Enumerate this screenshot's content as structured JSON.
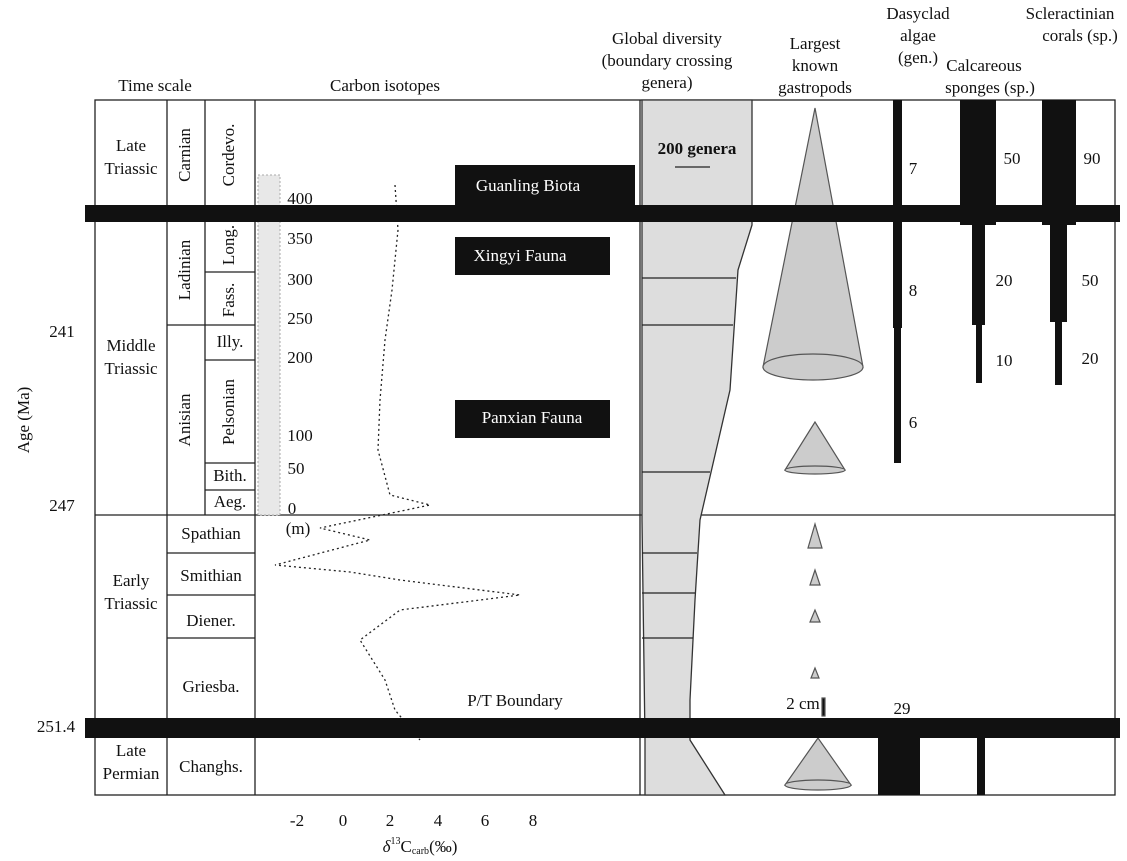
{
  "headers": {
    "time_scale": "Time scale",
    "carbon_isotopes": "Carbon isotopes",
    "global_diversity": [
      "Global diversity",
      "(boundary crossing",
      "genera)"
    ],
    "gastropods": [
      "Largest",
      "known",
      "gastropods"
    ],
    "dasyclad": [
      "Dasyclad",
      "algae",
      "(gen.)"
    ],
    "sponges": [
      "Calcareous",
      "sponges (sp.)"
    ],
    "corals": [
      "Scleractinian",
      "corals (sp.)"
    ]
  },
  "age_axis": {
    "label": "Age (Ma)",
    "ticks": [
      "241",
      "247",
      "251.4"
    ]
  },
  "periods": [
    [
      "Late",
      "Triassic"
    ],
    [
      "Middle",
      "Triassic"
    ],
    [
      "Early",
      "Triassic"
    ],
    [
      "Late",
      "Permian"
    ]
  ],
  "stages": [
    "Carnian",
    "Ladinian",
    "Anisian",
    "Spathian",
    "Smithian",
    "Diener.",
    "Griesba.",
    "Changhs."
  ],
  "substages": [
    "Cordevo.",
    "Long.",
    "Fass.",
    "Illy.",
    "Pelsonian",
    "Bith.",
    "Aeg."
  ],
  "section_meters": [
    "400",
    "350",
    "300",
    "250",
    "200",
    "100",
    "50",
    "0",
    "(m)"
  ],
  "biotas": [
    "Guanling Biota",
    "Xingyi Fauna",
    "Panxian Fauna"
  ],
  "boundary": "P/T Boundary",
  "carbon_axis": {
    "ticks": [
      "-2",
      "0",
      "2",
      "4",
      "6",
      "8"
    ],
    "label": [
      "δ",
      "13",
      "C",
      "carb",
      "(‰)"
    ]
  },
  "diversity_scale": "200 genera",
  "gastropod_scale": "2 cm",
  "dasyclad_counts": [
    "7",
    "8",
    "6",
    "29"
  ],
  "sponge_counts": [
    "50",
    "20",
    "10"
  ],
  "coral_counts": [
    "90",
    "50",
    "20"
  ]
}
